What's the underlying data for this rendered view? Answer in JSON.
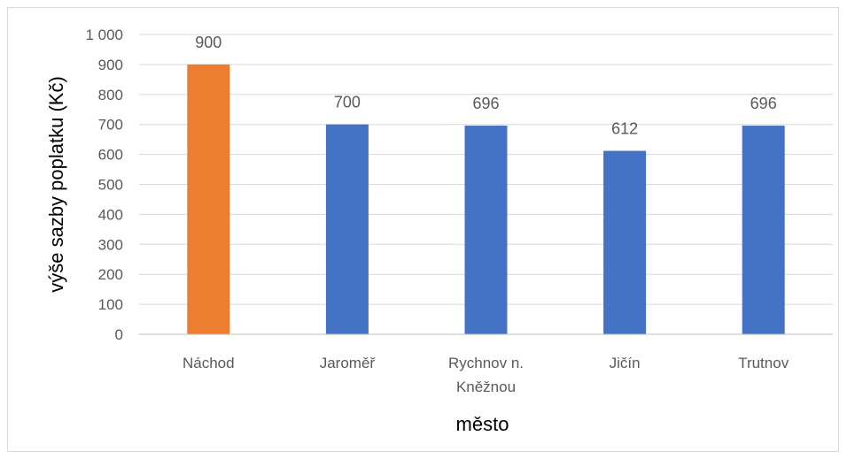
{
  "chart_data": {
    "type": "bar",
    "categories": [
      "Náchod",
      "Jaroměř",
      "Rychnov n. Kněžnou",
      "Jičín",
      "Trutnov"
    ],
    "category_label_lines": [
      [
        "Náchod"
      ],
      [
        "Jaroměř"
      ],
      [
        "Rychnov n.",
        "Kněžnou"
      ],
      [
        "Jičín"
      ],
      [
        "Trutnov"
      ]
    ],
    "values": [
      900,
      700,
      696,
      612,
      696
    ],
    "data_labels": [
      "900",
      "700",
      "696",
      "612",
      "696"
    ],
    "bar_colors": [
      "#ED7D31",
      "#4472C4",
      "#4472C4",
      "#4472C4",
      "#4472C4"
    ],
    "title": "",
    "xlabel": "město",
    "ylabel": "výše sazby poplatku  (Kč)",
    "ylim": [
      0,
      1000
    ],
    "y_ticks": [
      0,
      100,
      200,
      300,
      400,
      500,
      600,
      700,
      800,
      900,
      1000
    ],
    "y_tick_labels": [
      "0",
      "100",
      "200",
      "300",
      "400",
      "500",
      "600",
      "700",
      "800",
      "900",
      "1 000"
    ],
    "grid": true,
    "legend": "none"
  }
}
